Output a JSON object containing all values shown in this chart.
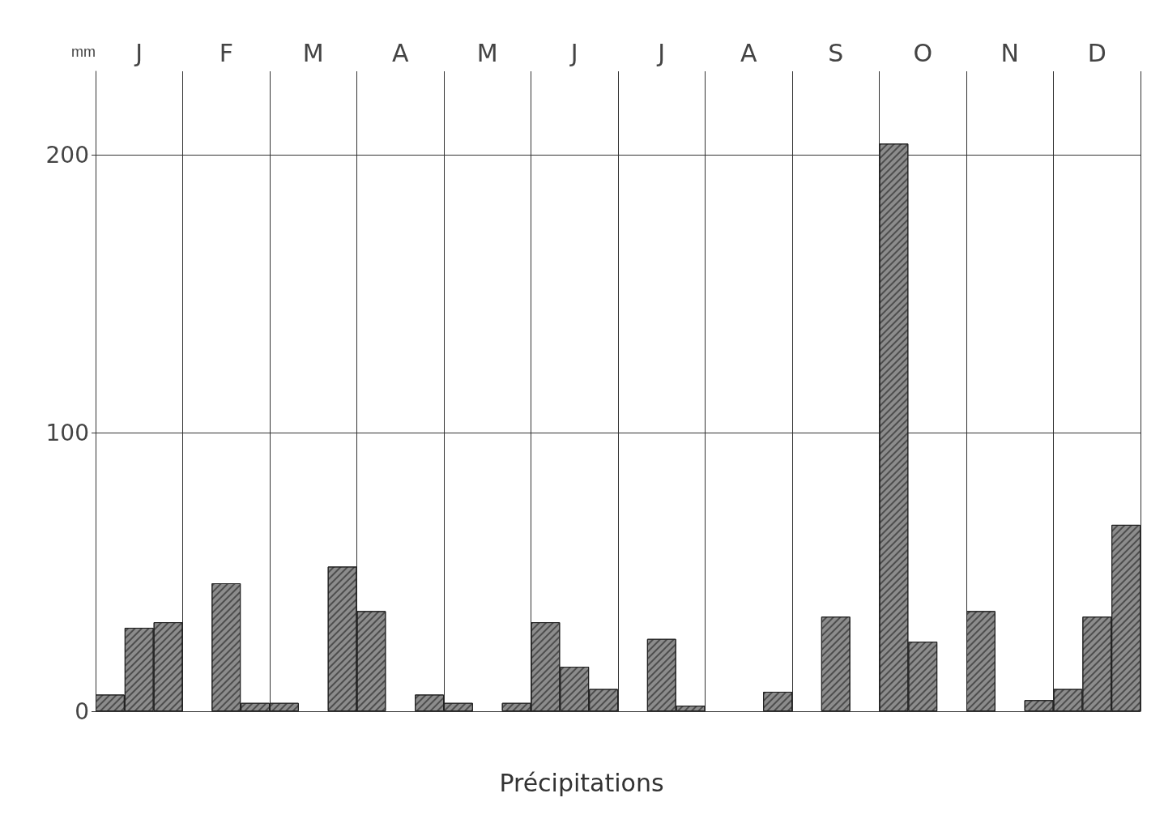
{
  "chart_data": {
    "type": "bar",
    "xlabel": "Précipitations",
    "ylabel": "mm",
    "categories": [
      "J",
      "F",
      "M",
      "A",
      "M",
      "J",
      "J",
      "A",
      "S",
      "O",
      "N",
      "D"
    ],
    "series": [
      {
        "color": "#8c8c8c",
        "values": [
          6,
          0,
          3,
          36,
          3,
          32,
          0,
          0,
          0,
          204,
          36,
          8
        ]
      },
      {
        "color": "#8c8c8c",
        "values": [
          30,
          46,
          0,
          0,
          0,
          16,
          26,
          0,
          34,
          25,
          0,
          34
        ]
      },
      {
        "color": "#8c8c8c",
        "values": [
          32,
          3,
          52,
          6,
          3,
          8,
          2,
          7,
          0,
          0,
          4,
          67
        ]
      }
    ],
    "ylim": [
      0,
      230
    ],
    "yticks": [
      0,
      100,
      200
    ],
    "grid": true
  }
}
